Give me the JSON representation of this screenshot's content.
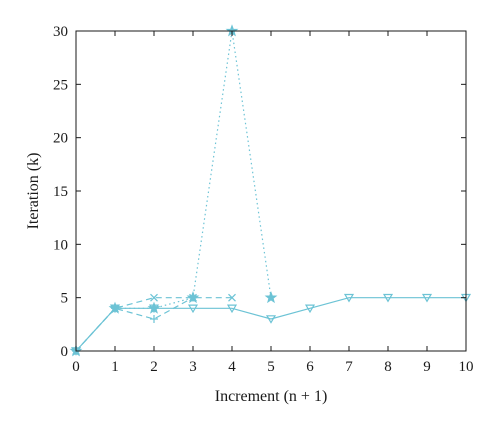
{
  "chart_data": {
    "type": "line",
    "xlabel": "Increment (n + 1)",
    "ylabel": "Iteration (k)",
    "xlim": [
      0,
      10
    ],
    "ylim": [
      0,
      30
    ],
    "x_ticks": [
      0,
      1,
      2,
      3,
      4,
      5,
      6,
      7,
      8,
      9,
      10
    ],
    "y_ticks": [
      0,
      5,
      10,
      15,
      20,
      25,
      30
    ],
    "grid": false,
    "color": "#6cc3d5",
    "series": [
      {
        "line_style": "solid",
        "marker": "triangle-down",
        "points": [
          [
            0,
            0
          ],
          [
            1,
            4
          ],
          [
            2,
            4
          ],
          [
            3,
            4
          ],
          [
            4,
            4
          ],
          [
            5,
            3
          ],
          [
            6,
            4
          ],
          [
            7,
            5
          ],
          [
            8,
            5
          ],
          [
            9,
            5
          ],
          [
            10,
            5
          ]
        ]
      },
      {
        "line_style": "dashed",
        "marker": "plus",
        "points": [
          [
            0,
            0
          ],
          [
            1,
            4
          ],
          [
            2,
            3
          ],
          [
            3,
            5
          ]
        ]
      },
      {
        "line_style": "dashed",
        "marker": "x",
        "points": [
          [
            0,
            0
          ],
          [
            1,
            4
          ],
          [
            2,
            5
          ],
          [
            3,
            5
          ],
          [
            4,
            5
          ]
        ]
      },
      {
        "line_style": "dotted",
        "marker": "pentagram",
        "points": [
          [
            0,
            0
          ],
          [
            1,
            4
          ],
          [
            2,
            4
          ],
          [
            3,
            5
          ],
          [
            4,
            30
          ],
          [
            5,
            5
          ]
        ]
      }
    ]
  }
}
